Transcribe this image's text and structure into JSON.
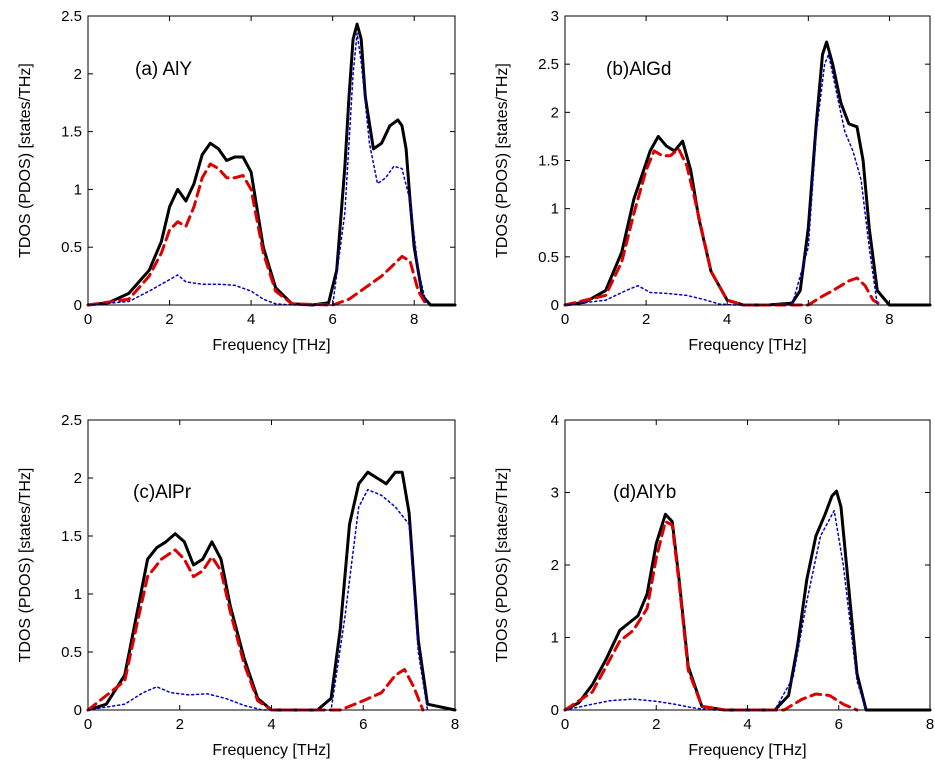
{
  "colors": {
    "total": "#000000",
    "pdos_al": "#dd0000",
    "pdos_x": "#0000cc"
  },
  "chart_data": [
    {
      "type": "line",
      "title": "(a) AlY",
      "xlabel": "Frequency [THz]",
      "ylabel": "TDOS (PDOS) [states/THz]",
      "xlim": [
        0,
        9
      ],
      "ylim": [
        0,
        2.5
      ],
      "xticks": [
        0,
        2,
        4,
        6,
        8
      ],
      "yticks": [
        0,
        0.5,
        1,
        1.5,
        2,
        2.5
      ],
      "yticklabels": [
        "0",
        "0.5",
        "1",
        "1.5",
        "2",
        "2.5"
      ],
      "grid": false,
      "series": [
        {
          "style": "solid",
          "x": [
            0,
            0.5,
            1.0,
            1.5,
            1.8,
            2.0,
            2.2,
            2.4,
            2.6,
            2.8,
            3.0,
            3.2,
            3.4,
            3.6,
            3.8,
            4.0,
            4.3,
            4.6,
            5.0,
            5.5,
            5.9,
            6.1,
            6.3,
            6.4,
            6.5,
            6.6,
            6.7,
            6.8,
            7.0,
            7.2,
            7.4,
            7.6,
            7.7,
            7.8,
            7.9,
            8.0,
            8.2,
            8.4,
            9.0
          ],
          "y": [
            0,
            0.02,
            0.1,
            0.3,
            0.55,
            0.85,
            1.0,
            0.9,
            1.05,
            1.3,
            1.4,
            1.35,
            1.25,
            1.28,
            1.28,
            1.15,
            0.5,
            0.15,
            0.01,
            0,
            0.02,
            0.3,
            1.2,
            1.8,
            2.3,
            2.43,
            2.3,
            1.8,
            1.35,
            1.4,
            1.55,
            1.6,
            1.55,
            1.35,
            0.9,
            0.5,
            0.08,
            0,
            0
          ]
        },
        {
          "style": "dashed",
          "x": [
            0,
            1.0,
            1.5,
            1.8,
            2.0,
            2.2,
            2.4,
            2.6,
            2.8,
            3.0,
            3.2,
            3.4,
            3.6,
            3.8,
            4.0,
            4.3,
            4.6,
            5.0,
            6.0,
            6.4,
            6.8,
            7.2,
            7.5,
            7.7,
            7.9,
            8.1,
            8.3
          ],
          "y": [
            0,
            0.05,
            0.25,
            0.45,
            0.65,
            0.72,
            0.68,
            0.85,
            1.1,
            1.22,
            1.18,
            1.1,
            1.1,
            1.12,
            1.0,
            0.45,
            0.12,
            0.01,
            0,
            0.05,
            0.15,
            0.25,
            0.35,
            0.42,
            0.38,
            0.12,
            0
          ]
        },
        {
          "style": "dotted",
          "x": [
            0,
            1.0,
            1.5,
            2.0,
            2.2,
            2.4,
            2.8,
            3.2,
            3.6,
            4.0,
            4.3,
            4.6,
            5.0,
            6.0,
            6.3,
            6.5,
            6.6,
            6.7,
            6.9,
            7.1,
            7.3,
            7.5,
            7.7,
            7.9,
            8.1,
            8.3
          ],
          "y": [
            0,
            0.03,
            0.12,
            0.22,
            0.26,
            0.2,
            0.18,
            0.18,
            0.17,
            0.12,
            0.05,
            0.01,
            0,
            0,
            0.8,
            2.0,
            2.35,
            2.1,
            1.4,
            1.05,
            1.1,
            1.2,
            1.18,
            0.9,
            0.3,
            0
          ]
        }
      ]
    },
    {
      "type": "line",
      "title": "(b)AlGd",
      "xlabel": "Frequency [THz]",
      "ylabel": "TDOS (PDOS) [states/THz]",
      "xlim": [
        0,
        9
      ],
      "ylim": [
        0,
        3
      ],
      "xticks": [
        0,
        2,
        4,
        6,
        8
      ],
      "yticks": [
        0,
        0.5,
        1,
        1.5,
        2,
        2.5,
        3
      ],
      "yticklabels": [
        "0",
        "0.5",
        "1",
        "1.5",
        "2",
        "2.5",
        "3"
      ],
      "grid": false,
      "series": [
        {
          "style": "solid",
          "x": [
            0,
            0.5,
            1.0,
            1.4,
            1.7,
            1.9,
            2.1,
            2.3,
            2.5,
            2.7,
            2.9,
            3.1,
            3.3,
            3.6,
            4.0,
            4.4,
            5.0,
            5.6,
            5.8,
            6.0,
            6.2,
            6.35,
            6.45,
            6.6,
            6.8,
            7.0,
            7.2,
            7.35,
            7.5,
            7.7,
            8.0,
            9.0
          ],
          "y": [
            0,
            0.03,
            0.15,
            0.55,
            1.1,
            1.35,
            1.6,
            1.75,
            1.65,
            1.6,
            1.7,
            1.4,
            0.9,
            0.35,
            0.05,
            0,
            0,
            0.02,
            0.15,
            0.8,
            1.9,
            2.6,
            2.73,
            2.5,
            2.1,
            1.88,
            1.85,
            1.5,
            0.8,
            0.15,
            0,
            0
          ]
        },
        {
          "style": "dashed",
          "x": [
            0,
            1.0,
            1.4,
            1.7,
            2.0,
            2.2,
            2.4,
            2.6,
            2.8,
            3.0,
            3.2,
            3.6,
            4.0,
            4.4,
            6.0,
            6.3,
            6.6,
            7.0,
            7.2,
            7.4,
            7.6,
            7.8
          ],
          "y": [
            0,
            0.1,
            0.45,
            0.95,
            1.4,
            1.6,
            1.55,
            1.55,
            1.62,
            1.45,
            1.1,
            0.35,
            0.05,
            0,
            0,
            0.08,
            0.15,
            0.25,
            0.28,
            0.2,
            0.05,
            0
          ]
        },
        {
          "style": "dotted",
          "x": [
            0,
            1.0,
            1.5,
            1.8,
            2.1,
            2.5,
            3.0,
            3.4,
            3.8,
            4.2,
            5.6,
            6.0,
            6.2,
            6.4,
            6.5,
            6.7,
            6.9,
            7.1,
            7.3,
            7.5,
            7.7
          ],
          "y": [
            0,
            0.05,
            0.15,
            0.2,
            0.13,
            0.12,
            0.1,
            0.06,
            0.01,
            0,
            0,
            0.6,
            1.8,
            2.5,
            2.6,
            2.2,
            1.8,
            1.6,
            1.3,
            0.6,
            0
          ]
        }
      ]
    },
    {
      "type": "line",
      "title": "(c)AlPr",
      "xlabel": "Frequency [THz]",
      "ylabel": "TDOS (PDOS) [states/THz]",
      "xlim": [
        0,
        8
      ],
      "ylim": [
        0,
        2.5
      ],
      "xticks": [
        0,
        2,
        4,
        6,
        8
      ],
      "yticks": [
        0,
        0.5,
        1,
        1.5,
        2,
        2.5
      ],
      "yticklabels": [
        "0",
        "0.5",
        "1",
        "1.5",
        "2",
        "2.5"
      ],
      "grid": false,
      "series": [
        {
          "style": "solid",
          "x": [
            0,
            0.4,
            0.8,
            1.1,
            1.3,
            1.5,
            1.7,
            1.9,
            2.1,
            2.3,
            2.5,
            2.7,
            2.9,
            3.1,
            3.4,
            3.7,
            4.0,
            4.5,
            5.0,
            5.3,
            5.5,
            5.7,
            5.9,
            6.1,
            6.3,
            6.5,
            6.7,
            6.85,
            7.0,
            7.2,
            7.4,
            8.0
          ],
          "y": [
            0,
            0.05,
            0.3,
            0.9,
            1.3,
            1.4,
            1.45,
            1.52,
            1.45,
            1.25,
            1.3,
            1.45,
            1.3,
            0.9,
            0.45,
            0.1,
            0,
            0,
            0,
            0.1,
            0.7,
            1.6,
            1.95,
            2.05,
            2.0,
            1.95,
            2.05,
            2.05,
            1.7,
            0.6,
            0.05,
            0
          ]
        },
        {
          "style": "dashed",
          "x": [
            0,
            0.8,
            1.1,
            1.3,
            1.6,
            1.9,
            2.1,
            2.3,
            2.5,
            2.7,
            2.9,
            3.1,
            3.4,
            3.7,
            4.0,
            5.5,
            6.0,
            6.4,
            6.7,
            6.9,
            7.1,
            7.3
          ],
          "y": [
            0,
            0.25,
            0.8,
            1.15,
            1.3,
            1.38,
            1.3,
            1.15,
            1.2,
            1.32,
            1.2,
            0.85,
            0.4,
            0.08,
            0,
            0,
            0.08,
            0.15,
            0.3,
            0.35,
            0.2,
            0
          ]
        },
        {
          "style": "dotted",
          "x": [
            0,
            0.8,
            1.2,
            1.5,
            1.8,
            2.2,
            2.6,
            3.0,
            3.4,
            3.8,
            5.3,
            5.6,
            5.9,
            6.1,
            6.4,
            6.7,
            7.0,
            7.2,
            7.4
          ],
          "y": [
            0,
            0.05,
            0.15,
            0.2,
            0.15,
            0.13,
            0.14,
            0.1,
            0.04,
            0,
            0,
            0.8,
            1.75,
            1.9,
            1.85,
            1.75,
            1.6,
            0.5,
            0
          ]
        }
      ]
    },
    {
      "type": "line",
      "title": "(d)AlYb",
      "xlabel": "Frequency [THz]",
      "ylabel": "TDOS (PDOS) [states/THz]",
      "xlim": [
        0,
        8
      ],
      "ylim": [
        0,
        4
      ],
      "xticks": [
        0,
        2,
        4,
        6,
        8
      ],
      "yticks": [
        0,
        1,
        2,
        3,
        4
      ],
      "yticklabels": [
        "0",
        "1",
        "2",
        "3",
        "4"
      ],
      "grid": false,
      "series": [
        {
          "style": "solid",
          "x": [
            0,
            0.3,
            0.6,
            0.9,
            1.2,
            1.4,
            1.6,
            1.8,
            2.0,
            2.2,
            2.35,
            2.5,
            2.7,
            3.0,
            3.5,
            4.0,
            4.6,
            4.9,
            5.1,
            5.3,
            5.5,
            5.7,
            5.85,
            5.95,
            6.05,
            6.2,
            6.4,
            6.6,
            8.0
          ],
          "y": [
            0,
            0.1,
            0.35,
            0.7,
            1.1,
            1.2,
            1.3,
            1.6,
            2.3,
            2.7,
            2.6,
            1.8,
            0.6,
            0.05,
            0,
            0,
            0,
            0.2,
            0.9,
            1.8,
            2.4,
            2.7,
            2.95,
            3.02,
            2.8,
            1.8,
            0.5,
            0,
            0
          ]
        },
        {
          "style": "dashed",
          "x": [
            0,
            0.6,
            0.9,
            1.2,
            1.5,
            1.8,
            2.0,
            2.2,
            2.35,
            2.5,
            2.7,
            3.0,
            3.5,
            4.8,
            5.2,
            5.5,
            5.8,
            6.1,
            6.4
          ],
          "y": [
            0,
            0.25,
            0.6,
            0.95,
            1.1,
            1.4,
            2.1,
            2.6,
            2.55,
            1.75,
            0.55,
            0.05,
            0,
            0,
            0.15,
            0.22,
            0.2,
            0.08,
            0
          ]
        },
        {
          "style": "dotted",
          "x": [
            0,
            0.6,
            1.0,
            1.5,
            2.0,
            2.4,
            2.8,
            3.2,
            4.6,
            5.0,
            5.3,
            5.6,
            5.9,
            6.1,
            6.4,
            6.6
          ],
          "y": [
            0,
            0.08,
            0.13,
            0.15,
            0.12,
            0.08,
            0.03,
            0,
            0,
            0.45,
            1.5,
            2.4,
            2.75,
            2.0,
            0.4,
            0
          ]
        }
      ]
    }
  ]
}
